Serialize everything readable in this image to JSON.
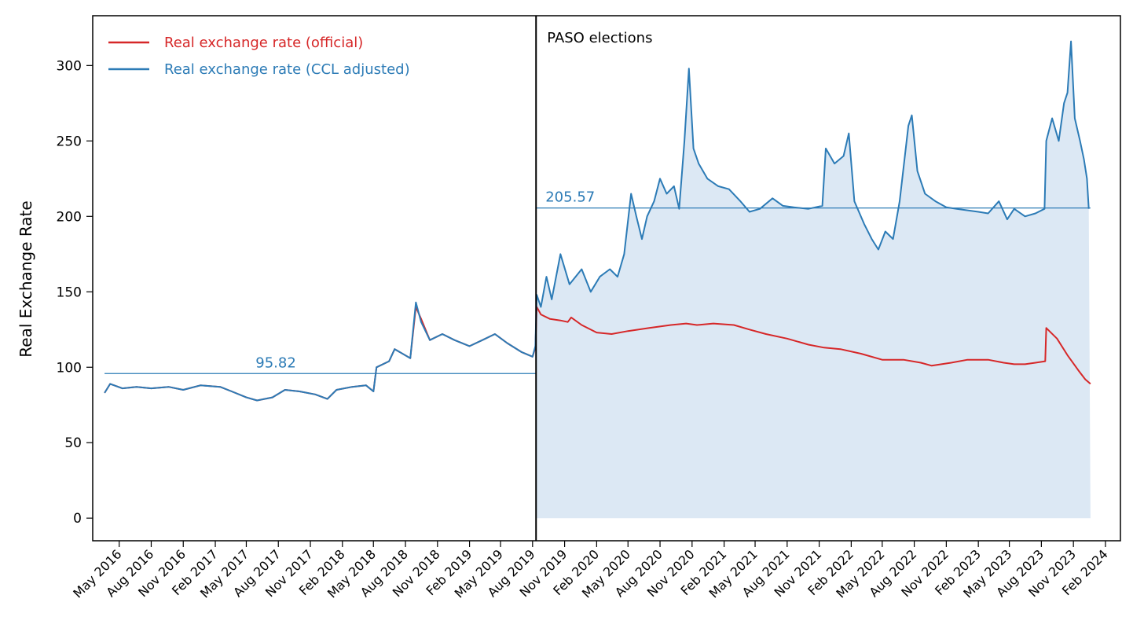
{
  "chart_data": {
    "type": "line",
    "title": "",
    "xlabel": "",
    "ylabel": "Real Exchange Rate",
    "ylim": [
      -15,
      333
    ],
    "xlim": [
      "2016-02-15",
      "2024-03-15"
    ],
    "yticks": [
      0,
      50,
      100,
      150,
      200,
      250,
      300
    ],
    "xticks": [
      {
        "date": "2016-05-01",
        "label": "May 2016"
      },
      {
        "date": "2016-08-01",
        "label": "Aug 2016"
      },
      {
        "date": "2016-11-01",
        "label": "Nov 2016"
      },
      {
        "date": "2017-02-01",
        "label": "Feb 2017"
      },
      {
        "date": "2017-05-01",
        "label": "May 2017"
      },
      {
        "date": "2017-08-01",
        "label": "Aug 2017"
      },
      {
        "date": "2017-11-01",
        "label": "Nov 2017"
      },
      {
        "date": "2018-02-01",
        "label": "Feb 2018"
      },
      {
        "date": "2018-05-01",
        "label": "May 2018"
      },
      {
        "date": "2018-08-01",
        "label": "Aug 2018"
      },
      {
        "date": "2018-11-01",
        "label": "Nov 2018"
      },
      {
        "date": "2019-02-01",
        "label": "Feb 2019"
      },
      {
        "date": "2019-05-01",
        "label": "May 2019"
      },
      {
        "date": "2019-08-01",
        "label": "Aug 2019"
      },
      {
        "date": "2019-11-01",
        "label": "Nov 2019"
      },
      {
        "date": "2020-02-01",
        "label": "Feb 2020"
      },
      {
        "date": "2020-05-01",
        "label": "May 2020"
      },
      {
        "date": "2020-08-01",
        "label": "Aug 2020"
      },
      {
        "date": "2020-11-01",
        "label": "Nov 2020"
      },
      {
        "date": "2021-02-01",
        "label": "Feb 2021"
      },
      {
        "date": "2021-05-01",
        "label": "May 2021"
      },
      {
        "date": "2021-08-01",
        "label": "Aug 2021"
      },
      {
        "date": "2021-11-01",
        "label": "Nov 2021"
      },
      {
        "date": "2022-02-01",
        "label": "Feb 2022"
      },
      {
        "date": "2022-05-01",
        "label": "May 2022"
      },
      {
        "date": "2022-08-01",
        "label": "Aug 2022"
      },
      {
        "date": "2022-11-01",
        "label": "Nov 2022"
      },
      {
        "date": "2023-02-01",
        "label": "Feb 2023"
      },
      {
        "date": "2023-05-01",
        "label": "May 2023"
      },
      {
        "date": "2023-08-01",
        "label": "Aug 2023"
      },
      {
        "date": "2023-11-01",
        "label": "Nov 2023"
      },
      {
        "date": "2024-02-01",
        "label": "Feb 2024"
      }
    ],
    "legend": {
      "placement": "top-left"
    },
    "series": [
      {
        "name": "Real exchange rate (official)",
        "color": "#d62728",
        "points": [
          [
            "2016-03-20",
            83
          ],
          [
            "2016-04-05",
            89
          ],
          [
            "2016-05-10",
            86
          ],
          [
            "2016-06-20",
            87
          ],
          [
            "2016-08-01",
            86
          ],
          [
            "2016-09-20",
            87
          ],
          [
            "2016-11-01",
            85
          ],
          [
            "2016-12-20",
            88
          ],
          [
            "2017-02-15",
            87
          ],
          [
            "2017-03-20",
            84
          ],
          [
            "2017-05-01",
            80
          ],
          [
            "2017-06-01",
            78
          ],
          [
            "2017-07-15",
            80
          ],
          [
            "2017-08-20",
            85
          ],
          [
            "2017-10-01",
            84
          ],
          [
            "2017-11-15",
            82
          ],
          [
            "2017-12-20",
            79
          ],
          [
            "2018-01-15",
            85
          ],
          [
            "2018-03-01",
            87
          ],
          [
            "2018-04-10",
            88
          ],
          [
            "2018-05-01",
            84
          ],
          [
            "2018-05-10",
            100
          ],
          [
            "2018-06-15",
            104
          ],
          [
            "2018-07-01",
            112
          ],
          [
            "2018-08-15",
            106
          ],
          [
            "2018-08-31",
            140
          ],
          [
            "2018-09-15",
            132
          ],
          [
            "2018-10-10",
            118
          ],
          [
            "2018-11-15",
            122
          ],
          [
            "2018-12-20",
            118
          ],
          [
            "2019-02-01",
            114
          ],
          [
            "2019-03-10",
            118
          ],
          [
            "2019-04-15",
            122
          ],
          [
            "2019-05-20",
            116
          ],
          [
            "2019-07-01",
            110
          ],
          [
            "2019-08-01",
            107
          ],
          [
            "2019-08-09",
            113
          ],
          [
            "2019-08-13",
            140
          ],
          [
            "2019-08-25",
            135
          ],
          [
            "2019-09-20",
            132
          ],
          [
            "2019-10-20",
            131
          ],
          [
            "2019-11-10",
            130
          ],
          [
            "2019-11-20",
            133
          ],
          [
            "2019-12-20",
            128
          ],
          [
            "2020-02-01",
            123
          ],
          [
            "2020-03-15",
            122
          ],
          [
            "2020-05-01",
            124
          ],
          [
            "2020-07-01",
            126
          ],
          [
            "2020-09-01",
            128
          ],
          [
            "2020-10-15",
            129
          ],
          [
            "2020-11-15",
            128
          ],
          [
            "2021-01-01",
            129
          ],
          [
            "2021-03-01",
            128
          ],
          [
            "2021-04-15",
            125
          ],
          [
            "2021-06-01",
            122
          ],
          [
            "2021-08-01",
            119
          ],
          [
            "2021-10-01",
            115
          ],
          [
            "2021-11-15",
            113
          ],
          [
            "2022-01-01",
            112
          ],
          [
            "2022-03-01",
            109
          ],
          [
            "2022-05-01",
            105
          ],
          [
            "2022-07-01",
            105
          ],
          [
            "2022-08-20",
            103
          ],
          [
            "2022-09-20",
            101
          ],
          [
            "2022-11-15",
            103
          ],
          [
            "2023-01-01",
            105
          ],
          [
            "2023-03-01",
            105
          ],
          [
            "2023-04-15",
            103
          ],
          [
            "2023-05-15",
            102
          ],
          [
            "2023-06-15",
            102
          ],
          [
            "2023-07-15",
            103
          ],
          [
            "2023-08-12",
            104
          ],
          [
            "2023-08-15",
            126
          ],
          [
            "2023-09-15",
            119
          ],
          [
            "2023-10-15",
            108
          ],
          [
            "2023-11-15",
            98
          ],
          [
            "2023-12-05",
            92
          ],
          [
            "2023-12-20",
            89
          ]
        ]
      },
      {
        "name": "Real exchange rate (CCL adjusted)",
        "color": "#2c7bb6",
        "points": [
          [
            "2016-03-20",
            83
          ],
          [
            "2016-04-05",
            89
          ],
          [
            "2016-05-10",
            86
          ],
          [
            "2016-06-20",
            87
          ],
          [
            "2016-08-01",
            86
          ],
          [
            "2016-09-20",
            87
          ],
          [
            "2016-11-01",
            85
          ],
          [
            "2016-12-20",
            88
          ],
          [
            "2017-02-15",
            87
          ],
          [
            "2017-03-20",
            84
          ],
          [
            "2017-05-01",
            80
          ],
          [
            "2017-06-01",
            78
          ],
          [
            "2017-07-15",
            80
          ],
          [
            "2017-08-20",
            85
          ],
          [
            "2017-10-01",
            84
          ],
          [
            "2017-11-15",
            82
          ],
          [
            "2017-12-20",
            79
          ],
          [
            "2018-01-15",
            85
          ],
          [
            "2018-03-01",
            87
          ],
          [
            "2018-04-10",
            88
          ],
          [
            "2018-05-01",
            84
          ],
          [
            "2018-05-10",
            100
          ],
          [
            "2018-06-15",
            104
          ],
          [
            "2018-07-01",
            112
          ],
          [
            "2018-08-15",
            106
          ],
          [
            "2018-08-31",
            143
          ],
          [
            "2018-09-15",
            130
          ],
          [
            "2018-10-10",
            118
          ],
          [
            "2018-11-15",
            122
          ],
          [
            "2018-12-20",
            118
          ],
          [
            "2019-02-01",
            114
          ],
          [
            "2019-03-10",
            118
          ],
          [
            "2019-04-15",
            122
          ],
          [
            "2019-05-20",
            116
          ],
          [
            "2019-07-01",
            110
          ],
          [
            "2019-08-01",
            107
          ],
          [
            "2019-08-09",
            114
          ],
          [
            "2019-08-13",
            148
          ],
          [
            "2019-08-25",
            140
          ],
          [
            "2019-09-10",
            160
          ],
          [
            "2019-09-25",
            145
          ],
          [
            "2019-10-20",
            175
          ],
          [
            "2019-11-15",
            155
          ],
          [
            "2019-12-20",
            165
          ],
          [
            "2020-01-15",
            150
          ],
          [
            "2020-02-10",
            160
          ],
          [
            "2020-03-10",
            165
          ],
          [
            "2020-04-01",
            160
          ],
          [
            "2020-04-20",
            175
          ],
          [
            "2020-05-10",
            215
          ],
          [
            "2020-05-25",
            200
          ],
          [
            "2020-06-10",
            185
          ],
          [
            "2020-06-25",
            200
          ],
          [
            "2020-07-15",
            210
          ],
          [
            "2020-08-01",
            225
          ],
          [
            "2020-08-20,",
            215
          ],
          [
            "2020-09-10",
            220
          ],
          [
            "2020-09-25",
            205
          ],
          [
            "2020-10-10",
            250
          ],
          [
            "2020-10-23",
            298
          ],
          [
            "2020-11-05",
            245
          ],
          [
            "2020-11-20",
            235
          ],
          [
            "2020-12-15",
            225
          ],
          [
            "2021-01-15",
            220
          ],
          [
            "2021-02-15",
            218
          ],
          [
            "2021-03-20",
            210
          ],
          [
            "2021-04-15",
            203
          ],
          [
            "2021-05-15",
            205
          ],
          [
            "2021-06-20",
            212
          ],
          [
            "2021-07-20",
            207
          ],
          [
            "2021-08-20",
            206
          ],
          [
            "2021-10-01",
            205
          ],
          [
            "2021-11-10",
            207
          ],
          [
            "2021-11-20",
            245
          ],
          [
            "2021-12-15",
            235
          ],
          [
            "2022-01-10",
            240
          ],
          [
            "2022-01-25",
            255
          ],
          [
            "2022-02-10",
            210
          ],
          [
            "2022-03-10",
            195
          ],
          [
            "2022-04-01",
            185
          ],
          [
            "2022-04-20",
            178
          ],
          [
            "2022-05-10",
            190
          ],
          [
            "2022-06-01",
            185
          ],
          [
            "2022-06-20",
            210
          ],
          [
            "2022-07-15",
            260
          ],
          [
            "2022-07-25",
            267
          ],
          [
            "2022-08-10",
            230
          ],
          [
            "2022-09-01",
            215
          ],
          [
            "2022-10-01",
            210
          ],
          [
            "2022-11-01",
            206
          ],
          [
            "2022-12-01",
            205
          ],
          [
            "2023-01-01",
            204
          ],
          [
            "2023-02-01",
            203
          ],
          [
            "2023-03-01",
            202
          ],
          [
            "2023-04-01",
            210
          ],
          [
            "2023-04-25",
            198
          ],
          [
            "2023-05-15",
            205
          ],
          [
            "2023-06-15",
            200
          ],
          [
            "2023-07-15",
            202
          ],
          [
            "2023-08-10",
            205
          ],
          [
            "2023-08-15",
            250
          ],
          [
            "2023-09-01",
            265
          ],
          [
            "2023-09-20",
            250
          ],
          [
            "2023-10-05",
            275
          ],
          [
            "2023-10-15",
            282
          ],
          [
            "2023-10-25",
            316
          ],
          [
            "2023-11-05",
            265
          ],
          [
            "2023-11-20",
            250
          ],
          [
            "2023-12-01",
            238
          ],
          [
            "2023-12-10",
            225
          ],
          [
            "2023-12-15",
            205
          ]
        ]
      }
    ],
    "reference_lines": [
      {
        "value": 95.82,
        "label": "95.82",
        "from": "2016-03-20",
        "to": "2019-08-11"
      },
      {
        "value": 205.57,
        "label": "205.57",
        "from": "2019-08-11",
        "to": "2023-12-20"
      }
    ],
    "shaded_region": {
      "from": "2019-08-11",
      "to": "2023-12-20",
      "series": "Real exchange rate (CCL adjusted)",
      "color": "#dce8f4"
    },
    "annotations": [
      {
        "type": "vline",
        "date": "2019-08-11",
        "label": "PASO elections"
      }
    ]
  }
}
